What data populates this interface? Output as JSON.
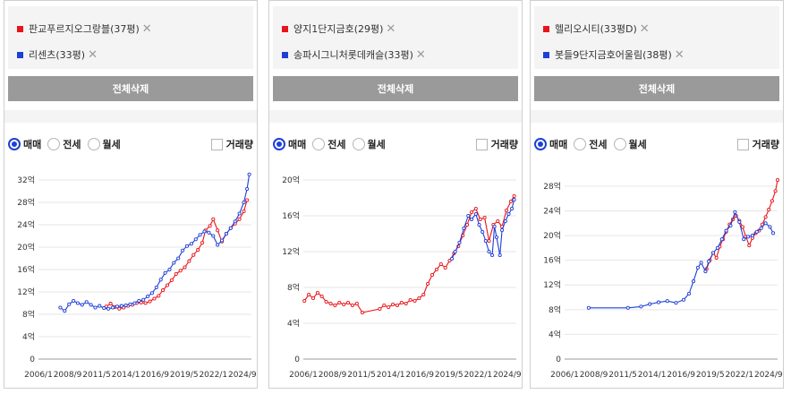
{
  "controls": {
    "clear_all": "전체삭제",
    "trade_type_options": [
      "매매",
      "전세",
      "월세"
    ],
    "selected_trade_type": "매매",
    "volume_label": "거래량",
    "volume_checked": false,
    "remove_glyph": "✕"
  },
  "colors": {
    "series_a": "#e8141a",
    "series_b": "#1e3fd8",
    "accent": "#1e40d6"
  },
  "chart_data": [
    {
      "type": "line",
      "x_ticks": [
        "2006/1",
        "2008/9",
        "2011/5",
        "2014/1",
        "2016/9",
        "2019/5",
        "2022/1",
        "2024/9"
      ],
      "y_ticks": [
        "0",
        "4억",
        "8억",
        "12억",
        "16억",
        "20억",
        "24억",
        "28억",
        "32억"
      ],
      "ylim": [
        0,
        32
      ],
      "series": [
        {
          "name": "판교푸르지오그랑블(37평)",
          "color": "#e8141a",
          "points": [
            [
              2012.2,
              9.4
            ],
            [
              2012.6,
              9.9
            ],
            [
              2013.0,
              9.3
            ],
            [
              2013.4,
              9.0
            ],
            [
              2013.8,
              9.2
            ],
            [
              2014.2,
              9.5
            ],
            [
              2014.6,
              9.7
            ],
            [
              2015.0,
              10.0
            ],
            [
              2015.4,
              10.1
            ],
            [
              2015.8,
              10.0
            ],
            [
              2016.2,
              10.3
            ],
            [
              2016.6,
              10.8
            ],
            [
              2017.0,
              11.3
            ],
            [
              2017.4,
              12.3
            ],
            [
              2017.8,
              13.2
            ],
            [
              2018.2,
              14.1
            ],
            [
              2018.6,
              15.2
            ],
            [
              2019.0,
              15.8
            ],
            [
              2019.4,
              16.4
            ],
            [
              2019.8,
              17.5
            ],
            [
              2020.2,
              18.6
            ],
            [
              2020.6,
              19.5
            ],
            [
              2021.0,
              20.8
            ],
            [
              2021.3,
              23.0
            ],
            [
              2021.7,
              23.8
            ],
            [
              2022.0,
              25.0
            ],
            [
              2022.4,
              23.0
            ],
            [
              2022.8,
              21.0
            ],
            [
              2023.2,
              22.4
            ],
            [
              2023.6,
              23.4
            ],
            [
              2024.0,
              24.2
            ],
            [
              2024.4,
              25.0
            ],
            [
              2024.8,
              26.4
            ],
            [
              2025.1,
              28.4
            ]
          ]
        },
        {
          "name": "리센츠(33평)",
          "color": "#1e3fd8",
          "points": [
            [
              2008.0,
              9.2
            ],
            [
              2008.4,
              8.6
            ],
            [
              2008.8,
              9.8
            ],
            [
              2009.2,
              10.4
            ],
            [
              2009.6,
              10.0
            ],
            [
              2010.0,
              9.7
            ],
            [
              2010.4,
              10.2
            ],
            [
              2010.8,
              9.7
            ],
            [
              2011.2,
              9.2
            ],
            [
              2011.6,
              9.5
            ],
            [
              2012.0,
              9.1
            ],
            [
              2012.4,
              9.0
            ],
            [
              2012.8,
              9.2
            ],
            [
              2013.2,
              9.4
            ],
            [
              2013.6,
              9.5
            ],
            [
              2014.0,
              9.6
            ],
            [
              2014.4,
              9.8
            ],
            [
              2014.8,
              10.0
            ],
            [
              2015.2,
              10.4
            ],
            [
              2015.6,
              10.6
            ],
            [
              2016.0,
              11.2
            ],
            [
              2016.4,
              11.8
            ],
            [
              2016.8,
              12.8
            ],
            [
              2017.2,
              14.2
            ],
            [
              2017.6,
              15.4
            ],
            [
              2018.0,
              16.0
            ],
            [
              2018.4,
              17.2
            ],
            [
              2018.8,
              18.0
            ],
            [
              2019.2,
              19.4
            ],
            [
              2019.6,
              20.2
            ],
            [
              2020.0,
              20.6
            ],
            [
              2020.4,
              21.4
            ],
            [
              2020.8,
              22.2
            ],
            [
              2021.2,
              22.8
            ],
            [
              2021.6,
              22.6
            ],
            [
              2022.0,
              22.0
            ],
            [
              2022.4,
              20.4
            ],
            [
              2022.8,
              21.2
            ],
            [
              2023.2,
              22.4
            ],
            [
              2023.6,
              23.4
            ],
            [
              2024.0,
              24.6
            ],
            [
              2024.4,
              26.0
            ],
            [
              2024.8,
              28.0
            ],
            [
              2025.1,
              30.4
            ],
            [
              2025.3,
              33.0
            ]
          ]
        }
      ]
    },
    {
      "type": "line",
      "x_ticks": [
        "2006/1",
        "2008/9",
        "2011/5",
        "2014/1",
        "2016/9",
        "2019/5",
        "2022/1",
        "2024/9"
      ],
      "y_ticks": [
        "0",
        "4억",
        "8억",
        "12억",
        "16억",
        "20억"
      ],
      "ylim": [
        0,
        20
      ],
      "series": [
        {
          "name": "양지1단지금호(29평)",
          "color": "#e8141a",
          "points": [
            [
              2006.1,
              6.5
            ],
            [
              2006.5,
              7.2
            ],
            [
              2006.9,
              6.8
            ],
            [
              2007.3,
              7.4
            ],
            [
              2007.7,
              7.0
            ],
            [
              2008.1,
              6.4
            ],
            [
              2008.5,
              6.2
            ],
            [
              2008.9,
              6.0
            ],
            [
              2009.3,
              6.3
            ],
            [
              2009.7,
              6.1
            ],
            [
              2010.1,
              6.3
            ],
            [
              2010.5,
              6.0
            ],
            [
              2010.9,
              6.2
            ],
            [
              2011.4,
              5.2
            ],
            [
              2013.0,
              5.6
            ],
            [
              2013.4,
              6.0
            ],
            [
              2013.8,
              5.8
            ],
            [
              2014.2,
              6.1
            ],
            [
              2014.6,
              6.0
            ],
            [
              2015.0,
              6.3
            ],
            [
              2015.4,
              6.2
            ],
            [
              2015.8,
              6.6
            ],
            [
              2016.2,
              6.5
            ],
            [
              2016.6,
              6.8
            ],
            [
              2017.0,
              7.2
            ],
            [
              2017.4,
              8.4
            ],
            [
              2017.8,
              9.4
            ],
            [
              2018.2,
              10.0
            ],
            [
              2018.6,
              10.6
            ],
            [
              2019.0,
              10.2
            ],
            [
              2019.4,
              11.0
            ],
            [
              2019.8,
              11.8
            ],
            [
              2020.2,
              12.6
            ],
            [
              2020.6,
              13.8
            ],
            [
              2021.0,
              15.0
            ],
            [
              2021.4,
              16.4
            ],
            [
              2021.8,
              16.8
            ],
            [
              2022.2,
              15.6
            ],
            [
              2022.6,
              15.8
            ],
            [
              2023.0,
              13.2
            ],
            [
              2023.4,
              15.0
            ],
            [
              2023.8,
              15.4
            ],
            [
              2024.2,
              14.8
            ],
            [
              2024.6,
              16.6
            ],
            [
              2025.0,
              17.6
            ],
            [
              2025.3,
              18.2
            ]
          ]
        },
        {
          "name": "송파시그니처롯데캐슬(33평)",
          "color": "#1e3fd8",
          "points": [
            [
              2019.6,
              11.2
            ],
            [
              2019.9,
              12.0
            ],
            [
              2020.3,
              13.0
            ],
            [
              2020.7,
              14.6
            ],
            [
              2021.1,
              16.0
            ],
            [
              2021.4,
              15.6
            ],
            [
              2021.8,
              16.2
            ],
            [
              2022.1,
              15.0
            ],
            [
              2022.4,
              14.2
            ],
            [
              2022.7,
              13.2
            ],
            [
              2023.0,
              12.0
            ],
            [
              2023.3,
              11.6
            ],
            [
              2023.5,
              14.8
            ],
            [
              2023.7,
              13.6
            ],
            [
              2024.0,
              11.6
            ],
            [
              2024.2,
              14.4
            ],
            [
              2024.5,
              15.4
            ],
            [
              2024.8,
              16.2
            ],
            [
              2025.1,
              16.8
            ],
            [
              2025.3,
              17.8
            ]
          ]
        }
      ]
    },
    {
      "type": "line",
      "x_ticks": [
        "2006/1",
        "2008/9",
        "2011/5",
        "2014/1",
        "2016/9",
        "2019/5",
        "2022/1",
        "2024/9"
      ],
      "y_ticks": [
        "0",
        "4억",
        "8억",
        "12억",
        "16억",
        "20억",
        "24억",
        "28억"
      ],
      "ylim": [
        0,
        29
      ],
      "series": [
        {
          "name": "헬리오시티(33평D)",
          "color": "#e8141a",
          "points": [
            [
              2019.0,
              14.6
            ],
            [
              2019.3,
              16.0
            ],
            [
              2019.6,
              17.2
            ],
            [
              2019.9,
              16.4
            ],
            [
              2020.2,
              18.2
            ],
            [
              2020.5,
              19.4
            ],
            [
              2020.8,
              20.6
            ],
            [
              2021.1,
              21.8
            ],
            [
              2021.4,
              22.6
            ],
            [
              2021.7,
              23.2
            ],
            [
              2022.0,
              22.4
            ],
            [
              2022.3,
              21.4
            ],
            [
              2022.6,
              19.8
            ],
            [
              2022.9,
              18.4
            ],
            [
              2023.2,
              19.6
            ],
            [
              2023.5,
              20.4
            ],
            [
              2023.8,
              20.8
            ],
            [
              2024.1,
              21.8
            ],
            [
              2024.4,
              23.0
            ],
            [
              2024.7,
              24.2
            ],
            [
              2025.0,
              25.6
            ],
            [
              2025.3,
              27.2
            ],
            [
              2025.5,
              29.0
            ]
          ]
        },
        {
          "name": "봇들9단지금호어울림(38평)",
          "color": "#1e3fd8",
          "points": [
            [
              2008.2,
              8.3
            ],
            [
              2011.8,
              8.3
            ],
            [
              2013.0,
              8.5
            ],
            [
              2013.8,
              8.9
            ],
            [
              2014.6,
              9.2
            ],
            [
              2015.4,
              9.4
            ],
            [
              2016.2,
              9.1
            ],
            [
              2016.9,
              9.6
            ],
            [
              2017.4,
              10.6
            ],
            [
              2017.8,
              12.6
            ],
            [
              2018.2,
              14.8
            ],
            [
              2018.5,
              15.6
            ],
            [
              2018.9,
              14.2
            ],
            [
              2019.2,
              15.8
            ],
            [
              2019.6,
              17.2
            ],
            [
              2020.0,
              18.0
            ],
            [
              2020.4,
              19.4
            ],
            [
              2020.8,
              20.8
            ],
            [
              2021.2,
              21.6
            ],
            [
              2021.6,
              23.8
            ],
            [
              2022.0,
              22.2
            ],
            [
              2022.4,
              19.4
            ],
            [
              2022.8,
              19.8
            ],
            [
              2023.2,
              20.0
            ],
            [
              2023.6,
              20.6
            ],
            [
              2024.0,
              21.2
            ],
            [
              2024.4,
              22.0
            ],
            [
              2024.8,
              21.4
            ],
            [
              2025.1,
              20.4
            ]
          ]
        }
      ]
    }
  ]
}
